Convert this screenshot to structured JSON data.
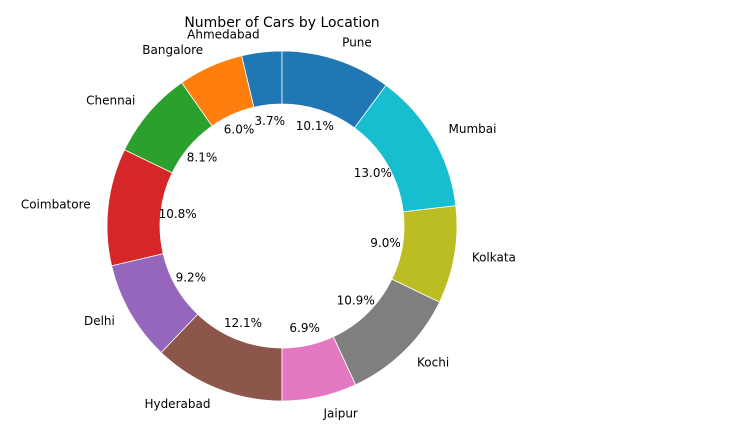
{
  "chart_data": {
    "type": "pie",
    "variant": "donut",
    "title": "Number of Cars by Location",
    "start_angle_deg": 90,
    "direction": "counterclockwise",
    "slices": [
      {
        "label": "Ahmedabad",
        "value": 3.7,
        "pct_label": "3.7%",
        "color": "#1f77b4"
      },
      {
        "label": "Bangalore",
        "value": 6.0,
        "pct_label": "6.0%",
        "color": "#ff7f0e"
      },
      {
        "label": "Chennai",
        "value": 8.1,
        "pct_label": "8.1%",
        "color": "#2ca02c"
      },
      {
        "label": "Coimbatore",
        "value": 10.8,
        "pct_label": "10.8%",
        "color": "#d62728"
      },
      {
        "label": "Delhi",
        "value": 9.2,
        "pct_label": "9.2%",
        "color": "#9467bd"
      },
      {
        "label": "Hyderabad",
        "value": 12.1,
        "pct_label": "12.1%",
        "color": "#8c564b"
      },
      {
        "label": "Jaipur",
        "value": 6.9,
        "pct_label": "6.9%",
        "color": "#e377c2"
      },
      {
        "label": "Kochi",
        "value": 10.9,
        "pct_label": "10.9%",
        "color": "#7f7f7f"
      },
      {
        "label": "Kolkata",
        "value": 9.0,
        "pct_label": "9.0%",
        "color": "#bcbd22"
      },
      {
        "label": "Mumbai",
        "value": 13.0,
        "pct_label": "13.0%",
        "color": "#17becf"
      },
      {
        "label": "Pune",
        "value": 10.1,
        "pct_label": "10.1%",
        "color": "#1f77b4"
      }
    ]
  }
}
